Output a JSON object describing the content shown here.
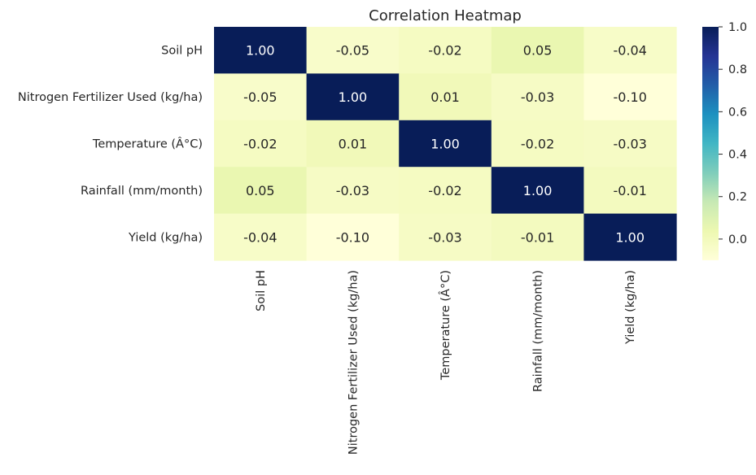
{
  "chart_data": {
    "type": "heatmap",
    "title": "Correlation Heatmap",
    "rows": [
      "Soil pH",
      "Nitrogen Fertilizer Used (kg/ha)",
      "Temperature (Â°C)",
      "Rainfall (mm/month)",
      "Yield (kg/ha)"
    ],
    "columns": [
      "Soil pH",
      "Nitrogen Fertilizer Used (kg/ha)",
      "Temperature (Â°C)",
      "Rainfall (mm/month)",
      "Yield (kg/ha)"
    ],
    "values": [
      [
        1.0,
        -0.05,
        -0.02,
        0.05,
        -0.04
      ],
      [
        -0.05,
        1.0,
        0.01,
        -0.03,
        -0.1
      ],
      [
        -0.02,
        0.01,
        1.0,
        -0.02,
        -0.03
      ],
      [
        0.05,
        -0.03,
        -0.02,
        1.0,
        -0.01
      ],
      [
        -0.04,
        -0.1,
        -0.03,
        -0.01,
        1.0
      ]
    ],
    "value_labels": [
      [
        "1.00",
        "-0.05",
        "-0.02",
        "0.05",
        "-0.04"
      ],
      [
        "-0.05",
        "1.00",
        "0.01",
        "-0.03",
        "-0.10"
      ],
      [
        "-0.02",
        "0.01",
        "1.00",
        "-0.02",
        "-0.03"
      ],
      [
        "0.05",
        "-0.03",
        "-0.02",
        "1.00",
        "-0.01"
      ],
      [
        "-0.04",
        "-0.10",
        "-0.03",
        "-0.01",
        "1.00"
      ]
    ],
    "colormap": "YlGnBu",
    "colorbar": {
      "range": [
        -0.1,
        1.0
      ],
      "ticks": [
        0.0,
        0.2,
        0.4,
        0.6,
        0.8,
        1.0
      ],
      "tick_labels": [
        "0.0",
        "0.2",
        "0.4",
        "0.6",
        "0.8",
        "1.0"
      ]
    },
    "colors": [
      "#ffffd9",
      "#edf8b1",
      "#c7e9b4",
      "#7fcdbb",
      "#41b6c4",
      "#1d91c0",
      "#225ea8",
      "#253494",
      "#081d58"
    ],
    "annotation_text_dark": "#262626",
    "annotation_text_light": "#ffffff"
  }
}
